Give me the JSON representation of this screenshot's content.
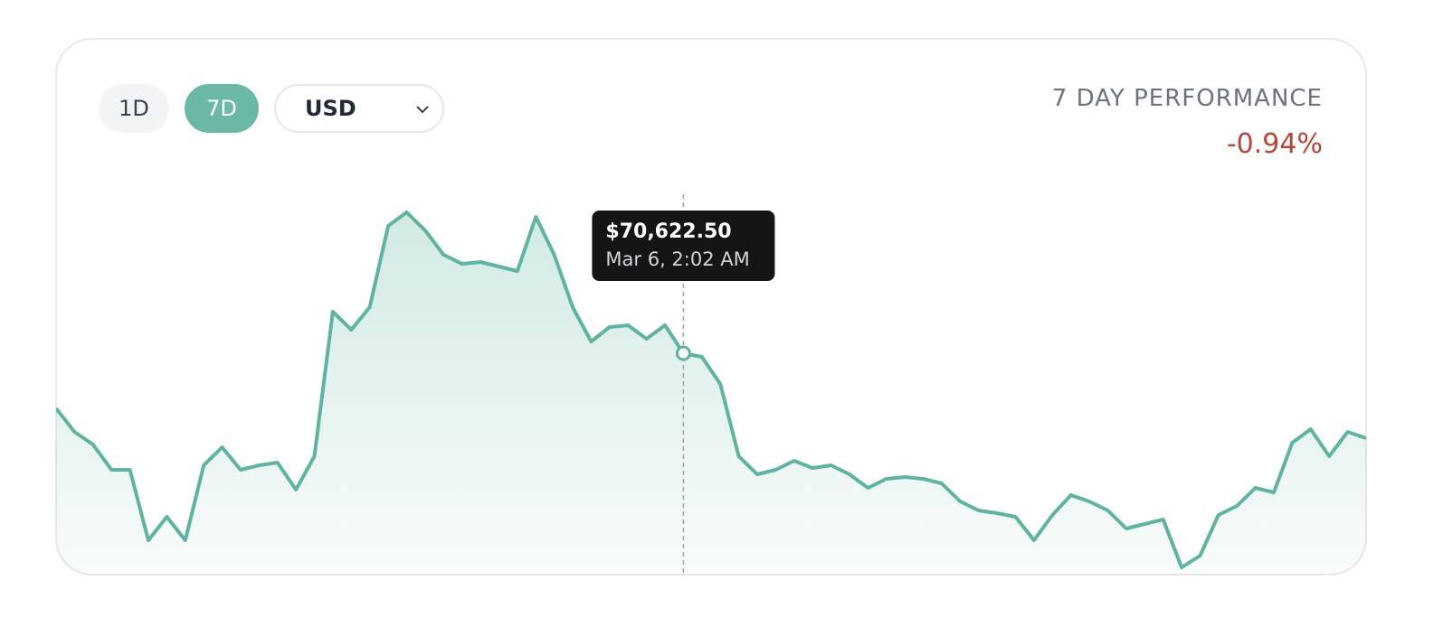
{
  "controls": {
    "ranges": [
      "1D",
      "7D"
    ],
    "currency": "USD"
  },
  "performance": {
    "label": "7 DAY PERFORMANCE",
    "value": "-0.94%"
  },
  "chart_data": {
    "type": "line",
    "color": "#5fb3a0",
    "ylim": [
      65742.5,
      74142.5
    ],
    "values": [
      69402.5,
      68882.5,
      68602.5,
      68042.5,
      68042.5,
      66482.5,
      67002.5,
      66482.5,
      68142.5,
      68542.5,
      68042.5,
      68142.5,
      68202.5,
      67602.5,
      68342.5,
      71542.5,
      71142.5,
      71642.5,
      73442.5,
      73742.5,
      73342.5,
      72802.5,
      72602.5,
      72642.5,
      72542.5,
      72442.5,
      73642.5,
      72802.5,
      71642.5,
      70882.5,
      71202.5,
      71242.5,
      70942.5,
      71242.5,
      70622.5,
      70542.5,
      69942.5,
      68342.5,
      67942.5,
      68042.5,
      68242.5,
      68082.5,
      68142.5,
      67942.5,
      67642.5,
      67842.5,
      67882.5,
      67842.5,
      67742.5,
      67342.5,
      67142.5,
      67082.5,
      67002.5,
      66482.5,
      67042.5,
      67482.5,
      67342.5,
      67142.5,
      66742.5,
      66842.5,
      66942.5,
      65882.5,
      66142.5,
      67042.5,
      67242.5,
      67642.5,
      67542.5,
      68642.5,
      68942.5,
      68342.5,
      68882.5,
      68742.5
    ],
    "value_labels": [
      null,
      null,
      null,
      null,
      null,
      null,
      null,
      null,
      null,
      null,
      null,
      null,
      null,
      null,
      null,
      null,
      null,
      null,
      null,
      null,
      null,
      null,
      null,
      null,
      null,
      null,
      null,
      null,
      null,
      null,
      null,
      null,
      null,
      null,
      "$70,622.50",
      null,
      null,
      null,
      null,
      null,
      null,
      null,
      null,
      null,
      null,
      null,
      null,
      null,
      null,
      null,
      null,
      null,
      null,
      null,
      null,
      null,
      null,
      null,
      null,
      null,
      null,
      null,
      null,
      null,
      null,
      null,
      null,
      null,
      null,
      null,
      null,
      null
    ],
    "tooltip_date": "Mar 6, 2:02 AM"
  }
}
